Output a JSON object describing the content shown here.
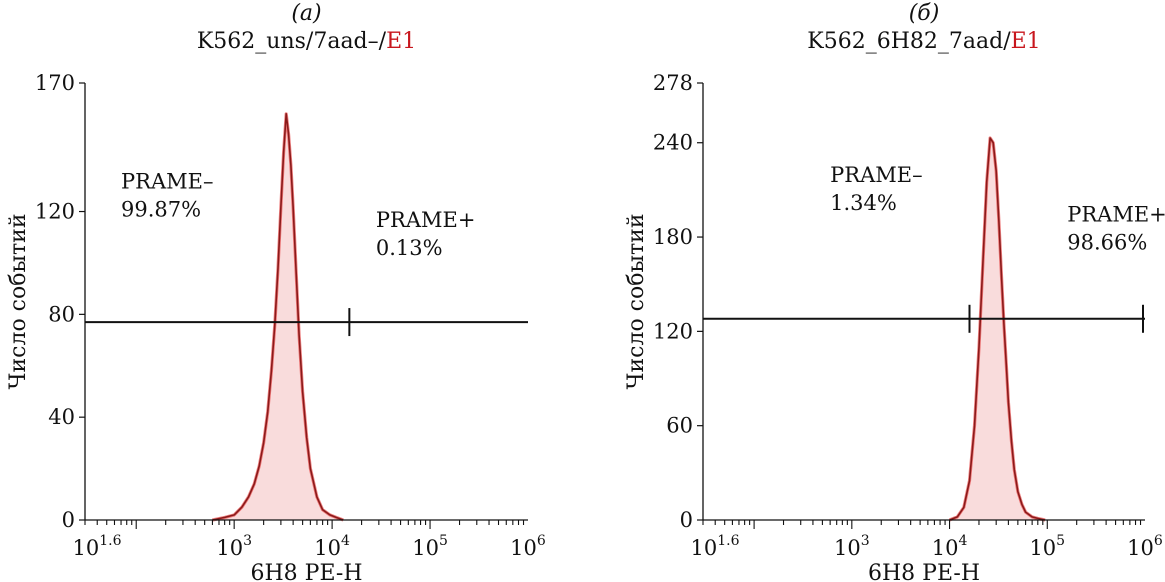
{
  "chart_data": [
    {
      "type": "histogram",
      "panel_letter": "(а)",
      "title": "K562_uns/7aad–/",
      "title_highlight": "E1",
      "title_highlight_color": "#c8161d",
      "xlabel": "6H8 PE-H",
      "ylabel": "Число событий",
      "x_scale": "log",
      "xlim": [
        30,
        1000000
      ],
      "ylim": [
        0,
        170
      ],
      "yticks": [
        0,
        40,
        80,
        120,
        170
      ],
      "xticks": [
        {
          "base": "10",
          "exp": "1.6",
          "value": 39.81
        },
        {
          "base": "10",
          "exp": "3",
          "value": 1000
        },
        {
          "base": "10",
          "exp": "4",
          "value": 10000
        },
        {
          "base": "10",
          "exp": "5",
          "value": 100000
        },
        {
          "base": "10",
          "exp": "6",
          "value": 1000000
        }
      ],
      "line_color": "#8b1a1a",
      "fill_color": "#f9dcdc",
      "highlight_color": "#e02020",
      "histogram": {
        "x": [
          600,
          800,
          1000,
          1200,
          1400,
          1600,
          1800,
          2000,
          2200,
          2400,
          2600,
          2800,
          3000,
          3200,
          3400,
          3600,
          3800,
          4000,
          4300,
          4600,
          5000,
          5500,
          6000,
          7000,
          8000,
          9500,
          11000,
          13000
        ],
        "y": [
          0,
          1,
          2,
          5,
          9,
          14,
          21,
          30,
          42,
          58,
          76,
          98,
          122,
          143,
          158,
          150,
          138,
          122,
          96,
          72,
          50,
          32,
          20,
          9,
          4,
          2,
          1,
          0
        ]
      },
      "gate": {
        "y": 77,
        "x_start": 30,
        "x_end": 1000000,
        "split": 15000
      },
      "gates": [
        {
          "name": "PRAME–",
          "value": "99.87%",
          "x": 70,
          "y": 129
        },
        {
          "name": "PRAME+",
          "value": "0.13%",
          "x": 28000,
          "y": 114
        }
      ]
    },
    {
      "type": "histogram",
      "panel_letter": "(б)",
      "title": "K562_6H82_7aad/",
      "title_highlight": "E1",
      "title_highlight_color": "#c8161d",
      "xlabel": "6H8 PE-H",
      "ylabel": "Число событий",
      "x_scale": "log",
      "xlim": [
        30,
        1000000
      ],
      "ylim": [
        0,
        278
      ],
      "yticks": [
        0,
        60,
        120,
        180,
        240,
        278
      ],
      "xticks": [
        {
          "base": "10",
          "exp": "1.6",
          "value": 39.81
        },
        {
          "base": "10",
          "exp": "3",
          "value": 1000
        },
        {
          "base": "10",
          "exp": "4",
          "value": 10000
        },
        {
          "base": "10",
          "exp": "5",
          "value": 100000
        },
        {
          "base": "10",
          "exp": "6",
          "value": 1000000
        }
      ],
      "line_color": "#8b1a1a",
      "fill_color": "#f9dcdc",
      "highlight_color": "#e02020",
      "histogram": {
        "x": [
          10000,
          12000,
          14000,
          16000,
          18000,
          20000,
          22000,
          24000,
          26000,
          28000,
          30000,
          32000,
          34000,
          36000,
          38000,
          40000,
          43000,
          46000,
          50000,
          55000,
          60000,
          70000,
          80000,
          95000
        ],
        "y": [
          0,
          2,
          8,
          25,
          60,
          110,
          165,
          215,
          243,
          240,
          222,
          190,
          155,
          125,
          100,
          75,
          50,
          32,
          18,
          10,
          5,
          2,
          1,
          0
        ]
      },
      "gate": {
        "y": 128,
        "x_start": 30,
        "x_end": 1000000,
        "split": 16000
      },
      "gates": [
        {
          "name": "PRAME–",
          "value": "1.34%",
          "x": 600,
          "y": 215
        },
        {
          "name": "PRAME+",
          "value": "98.66%",
          "x": 160000,
          "y": 190
        }
      ]
    }
  ]
}
